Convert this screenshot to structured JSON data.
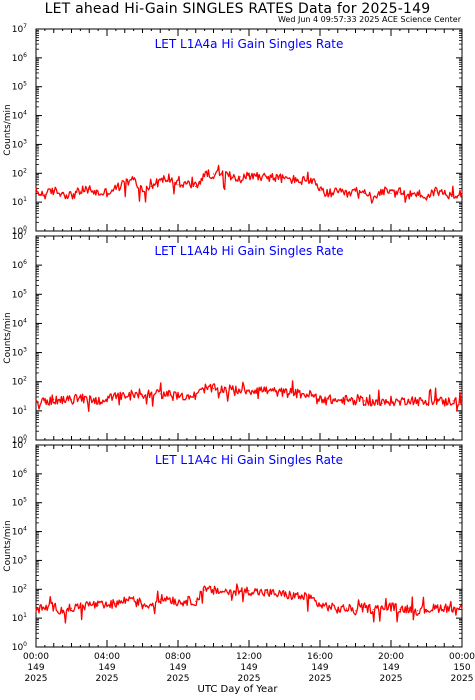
{
  "title": "LET ahead Hi-Gain SINGLES RATES Data for 2025-149",
  "timestamp": "Wed Jun  4 09:57:33 2025 ACE Science Center",
  "xlabel": "UTC Day of Year",
  "colors": {
    "series": "#ff0000",
    "panel_title": "#0000ff",
    "axes": "#000000"
  },
  "x_ticks": [
    {
      "hours": 0,
      "time": "00:00",
      "day": "149",
      "year": "2025"
    },
    {
      "hours": 4,
      "time": "04:00",
      "day": "149",
      "year": "2025"
    },
    {
      "hours": 8,
      "time": "08:00",
      "day": "149",
      "year": "2025"
    },
    {
      "hours": 12,
      "time": "12:00",
      "day": "149",
      "year": "2025"
    },
    {
      "hours": 16,
      "time": "16:00",
      "day": "149",
      "year": "2025"
    },
    {
      "hours": 20,
      "time": "20:00",
      "day": "149",
      "year": "2025"
    },
    {
      "hours": 24,
      "time": "00:00",
      "day": "150",
      "year": "2025"
    }
  ],
  "chart_data": [
    {
      "type": "line",
      "title": "LET L1A4a Hi Gain Singles Rate",
      "ylabel": "Counts/min",
      "yscale": "log",
      "ylim": [
        1,
        10000000
      ],
      "xlim": [
        0,
        24
      ],
      "y_tick_exponents": [
        0,
        1,
        2,
        3,
        4,
        5,
        6,
        7
      ],
      "series": [
        {
          "x": [
            0,
            0.5,
            1,
            1.5,
            2,
            2.5,
            3,
            3.5,
            4,
            4.5,
            5,
            5.5,
            6,
            6.5,
            7,
            7.5,
            8,
            8.5,
            9,
            9.5,
            10,
            10.5,
            11,
            11.5,
            12,
            12.5,
            13,
            13.5,
            14,
            14.5,
            15,
            15.5,
            16,
            16.5,
            17,
            17.5,
            18,
            18.5,
            19,
            19.5,
            20,
            20.5,
            21,
            21.5,
            22,
            22.5,
            23,
            23.5,
            24
          ],
          "y": [
            22,
            18,
            25,
            20,
            17,
            24,
            28,
            20,
            22,
            30,
            45,
            60,
            25,
            35,
            55,
            70,
            40,
            45,
            35,
            90,
            95,
            85,
            80,
            75,
            80,
            85,
            75,
            70,
            65,
            60,
            55,
            60,
            25,
            20,
            22,
            18,
            24,
            20,
            15,
            25,
            20,
            22,
            18,
            20,
            15,
            25,
            20,
            18,
            22
          ]
        }
      ]
    },
    {
      "type": "line",
      "title": "LET L1A4b Hi Gain Singles Rate",
      "ylabel": "Counts/min",
      "yscale": "log",
      "ylim": [
        1,
        10000000
      ],
      "xlim": [
        0,
        24
      ],
      "y_tick_exponents": [
        0,
        1,
        2,
        3,
        4,
        5,
        6,
        7
      ],
      "series": [
        {
          "x": [
            0,
            0.5,
            1,
            1.5,
            2,
            2.5,
            3,
            3.5,
            4,
            4.5,
            5,
            5.5,
            6,
            6.5,
            7,
            7.5,
            8,
            8.5,
            9,
            9.5,
            10,
            10.5,
            11,
            11.5,
            12,
            12.5,
            13,
            13.5,
            14,
            14.5,
            15,
            15.5,
            16,
            16.5,
            17,
            17.5,
            18,
            18.5,
            19,
            19.5,
            20,
            20.5,
            21,
            21.5,
            22,
            22.5,
            23,
            23.5,
            24
          ],
          "y": [
            22,
            20,
            25,
            22,
            24,
            28,
            25,
            22,
            26,
            30,
            32,
            30,
            35,
            40,
            38,
            35,
            30,
            34,
            32,
            60,
            58,
            55,
            55,
            52,
            50,
            55,
            50,
            45,
            42,
            40,
            38,
            35,
            28,
            25,
            22,
            24,
            20,
            22,
            20,
            18,
            22,
            20,
            25,
            22,
            18,
            24,
            20,
            22,
            20
          ]
        }
      ]
    },
    {
      "type": "line",
      "title": "LET L1A4c Hi Gain Singles Rate",
      "ylabel": "Counts/min",
      "yscale": "log",
      "ylim": [
        1,
        10000000
      ],
      "xlim": [
        0,
        24
      ],
      "y_tick_exponents": [
        0,
        1,
        2,
        3,
        4,
        5,
        6,
        7
      ],
      "series": [
        {
          "x": [
            0,
            0.5,
            1,
            1.5,
            2,
            2.5,
            3,
            3.5,
            4,
            4.5,
            5,
            5.5,
            6,
            6.5,
            7,
            7.5,
            8,
            8.5,
            9,
            9.5,
            10,
            10.5,
            11,
            11.5,
            12,
            12.5,
            13,
            13.5,
            14,
            14.5,
            15,
            15.5,
            16,
            16.5,
            17,
            17.5,
            18,
            18.5,
            19,
            19.5,
            20,
            20.5,
            21,
            21.5,
            22,
            22.5,
            23,
            23.5,
            24
          ],
          "y": [
            20,
            22,
            25,
            18,
            22,
            25,
            30,
            28,
            26,
            32,
            40,
            55,
            28,
            30,
            45,
            50,
            35,
            40,
            38,
            95,
            90,
            85,
            80,
            85,
            90,
            80,
            75,
            70,
            65,
            60,
            55,
            50,
            28,
            25,
            20,
            22,
            18,
            24,
            20,
            22,
            25,
            20,
            22,
            18,
            20,
            22,
            24,
            20,
            22
          ]
        }
      ]
    }
  ]
}
